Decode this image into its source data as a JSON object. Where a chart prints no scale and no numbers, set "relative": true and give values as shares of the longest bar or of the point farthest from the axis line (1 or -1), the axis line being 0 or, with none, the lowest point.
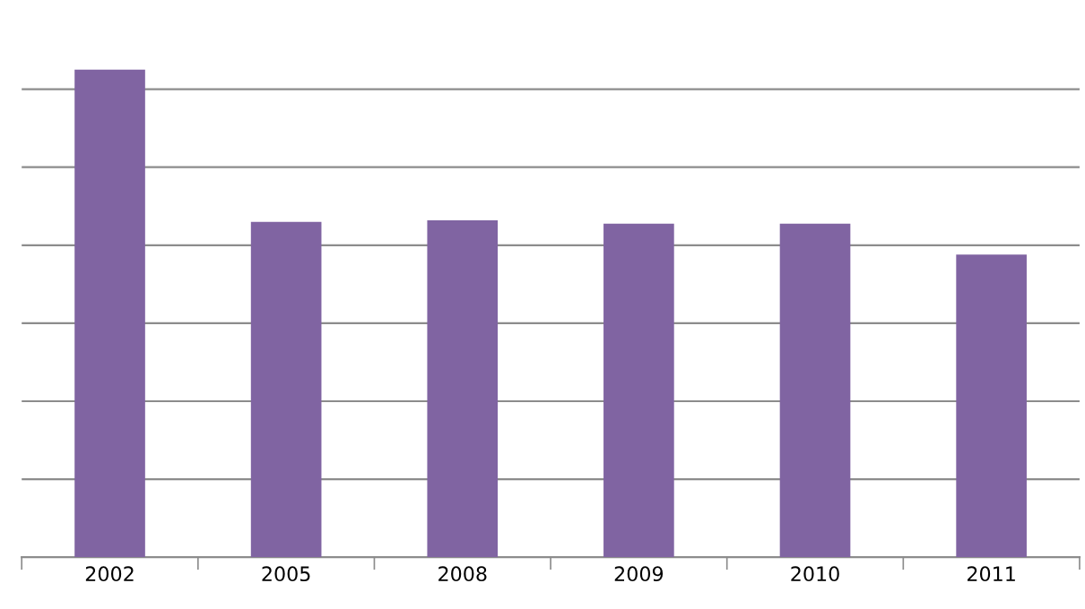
{
  "chart_data": {
    "type": "bar",
    "relative": true,
    "categories": [
      "2002",
      "2005",
      "2008",
      "2009",
      "2010",
      "2011"
    ],
    "series": [
      {
        "color": "#8064a2",
        "values": [
          1,
          0.688,
          0.691,
          0.684,
          0.684,
          0.621
        ]
      }
    ],
    "grid": "y",
    "legend": false
  }
}
